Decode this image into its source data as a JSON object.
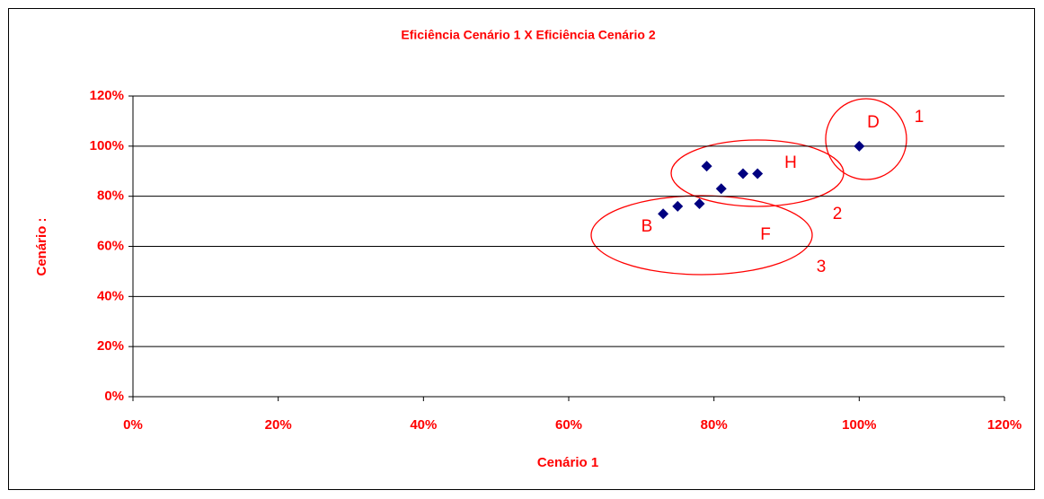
{
  "chart_data": {
    "type": "scatter",
    "title": "Eficiência Cenário 1 X Eficiência Cenário 2",
    "x_label": "Cenário 1",
    "y_label": "Cenário :",
    "x": [
      73,
      75,
      78,
      79,
      81,
      84,
      86,
      100
    ],
    "series": [
      {
        "color": "#000080",
        "values": [
          73,
          76,
          77,
          92,
          83,
          89,
          89,
          100
        ]
      }
    ],
    "xlim": [
      0,
      120
    ],
    "ylim": [
      0,
      120
    ],
    "xticks": [
      {
        "value": 0,
        "label": "0%"
      },
      {
        "value": 20,
        "label": "20%"
      },
      {
        "value": 40,
        "label": "40%"
      },
      {
        "value": 60,
        "label": "60%"
      },
      {
        "value": 80,
        "label": "80%"
      },
      {
        "value": 100,
        "label": "100%"
      },
      {
        "value": 120,
        "label": "120%"
      }
    ],
    "yticks": [
      {
        "value": 0,
        "label": "0%"
      },
      {
        "value": 20,
        "label": "20%"
      },
      {
        "value": 40,
        "label": "40%"
      },
      {
        "value": 60,
        "label": "60%"
      },
      {
        "value": 80,
        "label": "80%"
      },
      {
        "value": 100,
        "label": "100%"
      },
      {
        "value": 120,
        "label": "120%"
      }
    ],
    "grid": true,
    "annotations": [
      "D",
      "1",
      "H",
      "2",
      "B",
      "F",
      "3"
    ]
  }
}
